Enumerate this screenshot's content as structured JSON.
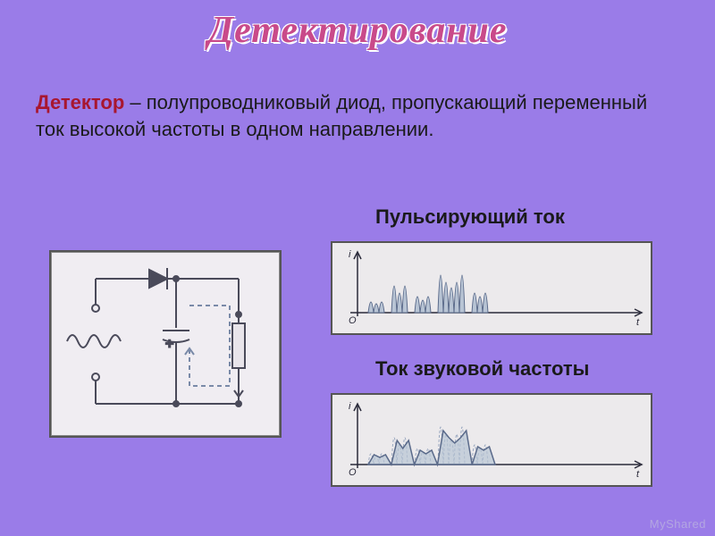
{
  "title": "Детектирование",
  "description": {
    "term": "Детектор",
    "text": " – полупроводниковый диод, пропускающий переменный ток высокой частоты в одном направлении."
  },
  "labels": {
    "pulsating": "Пульсирующий ток",
    "audio": "Ток звуковой частоты"
  },
  "watermark": "MyShared",
  "colors": {
    "background": "#9a7ce8",
    "title_fill": "#c94a8a",
    "term": "#a8162f",
    "text": "#1a1a1a",
    "box_bg": "#f0edf2",
    "graph_bg": "#eceaec",
    "circuit_stroke": "#4a4a5a",
    "circuit_dash": "#7a8aa8",
    "signal_fill": "#b8c4d4",
    "signal_stroke": "#5a6a8a",
    "audio_dash": "#9aa8c0"
  },
  "circuit": {
    "type": "schematic",
    "input_wave_cycles": 4,
    "components": [
      "diode",
      "capacitor",
      "resistor"
    ],
    "stroke_width": 2
  },
  "graph_pulsating": {
    "type": "waveform",
    "bursts": [
      [
        12,
        10,
        12
      ],
      [
        30,
        22,
        30
      ],
      [
        18,
        14,
        18
      ],
      [
        42,
        34,
        28,
        34,
        42
      ],
      [
        22,
        18,
        22
      ]
    ],
    "burst_gap": 8,
    "pulse_width": 6,
    "fill_color": "#b8c4d4",
    "stroke_color": "#5a6a8a",
    "axis_color": "#2a2a3a",
    "ylim": [
      0,
      50
    ]
  },
  "graph_audio": {
    "type": "waveform-overlay",
    "bursts_ghost": [
      [
        12,
        10,
        12
      ],
      [
        30,
        22,
        30
      ],
      [
        18,
        14,
        18
      ],
      [
        42,
        34,
        28,
        34,
        42
      ],
      [
        22,
        18,
        22
      ]
    ],
    "envelope_points": [
      0,
      11,
      8,
      11,
      0,
      27,
      18,
      27,
      0,
      16,
      12,
      16,
      0,
      38,
      30,
      24,
      30,
      38,
      0,
      20,
      16,
      20,
      0
    ],
    "burst_gap": 8,
    "pulse_width": 6,
    "ghost_stroke": "#9aa8c0",
    "envelope_fill": "#b8c4d4",
    "envelope_stroke": "#5a6a8a",
    "axis_color": "#2a2a3a",
    "ylim": [
      0,
      50
    ]
  }
}
